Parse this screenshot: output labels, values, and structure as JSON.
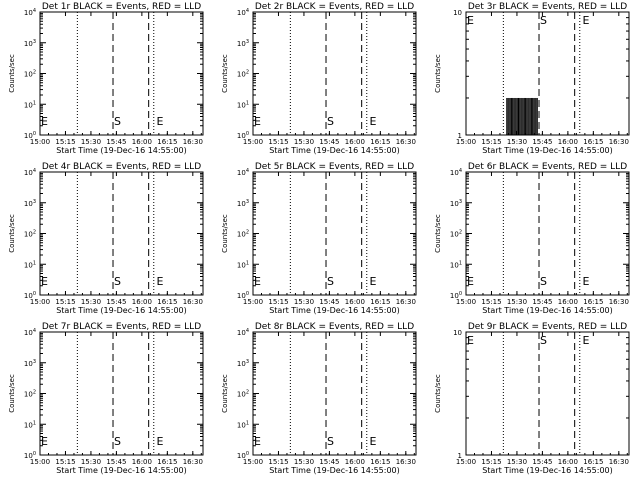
{
  "panel_title_suffix": "BLACK = Events, RED = LLD",
  "x_axis_title": "Start Time (19-Dec-16 14:55:00)",
  "y_axis_title": "Counts/sec",
  "marker_labels": {
    "start": "S",
    "end": "E"
  },
  "colors": {
    "background": "#ffffff",
    "foreground": "#000000",
    "events": "#000000",
    "lld": "#ff0000"
  },
  "chart_data": [
    {
      "type": "line",
      "title": "Det 1r BLACK = Events, RED = LLD",
      "xlabel": "Start Time (19-Dec-16 14:55:00)",
      "ylabel": "Counts/sec",
      "yscale": "log",
      "ylim": [
        1,
        10000
      ],
      "x_tick_labels": [
        "15:00",
        "15:15",
        "15:30",
        "15:45",
        "16:00",
        "16:15",
        "16:30"
      ],
      "y_tick_exponents": [
        0,
        1,
        2,
        3,
        4
      ],
      "dotted_lines": [
        "15:22",
        "16:07",
        "16:36"
      ],
      "dashed_lines": [
        "15:43",
        "16:04"
      ],
      "markers": [
        {
          "label": "E",
          "x": "15:00"
        },
        {
          "label": "S",
          "x": "15:43"
        },
        {
          "label": "E",
          "x": "16:08"
        }
      ],
      "series": [],
      "grid": false
    },
    {
      "type": "line",
      "title": "Det 2r BLACK = Events, RED = LLD",
      "xlabel": "Start Time (19-Dec-16 14:55:00)",
      "ylabel": "Counts/sec",
      "yscale": "log",
      "ylim": [
        1,
        10000
      ],
      "x_tick_labels": [
        "15:00",
        "15:15",
        "15:30",
        "15:45",
        "16:00",
        "16:15",
        "16:30"
      ],
      "y_tick_exponents": [
        0,
        1,
        2,
        3,
        4
      ],
      "dotted_lines": [
        "15:22",
        "16:07",
        "16:36"
      ],
      "dashed_lines": [
        "15:43",
        "16:04"
      ],
      "markers": [
        {
          "label": "E",
          "x": "15:00"
        },
        {
          "label": "S",
          "x": "15:43"
        },
        {
          "label": "E",
          "x": "16:08"
        }
      ],
      "series": [],
      "grid": false
    },
    {
      "type": "line",
      "title": "Det 3r BLACK = Events, RED = LLD",
      "xlabel": "Start Time (19-Dec-16 14:55:00)",
      "ylabel": "Counts/sec",
      "yscale": "log",
      "ylim": [
        1,
        10
      ],
      "y_tick_labels": [
        "1",
        "10"
      ],
      "x_tick_labels": [
        "15:00",
        "15:15",
        "15:30",
        "15:45",
        "16:00",
        "16:15",
        "16:30"
      ],
      "dotted_lines": [
        "15:22",
        "16:07",
        "16:36"
      ],
      "dashed_lines": [
        "15:43",
        "16:04"
      ],
      "markers": [
        {
          "label": "E",
          "x": "15:00"
        },
        {
          "label": "S",
          "x": "15:43"
        },
        {
          "label": "E",
          "x": "16:08"
        }
      ],
      "series": [
        {
          "values_description": "",
          "bursts": {
            "x_start": "15:24",
            "x_end": "15:42",
            "count_per_sec": 2
          }
        }
      ],
      "grid": false
    },
    {
      "type": "line",
      "title": "Det 4r BLACK = Events, RED = LLD",
      "xlabel": "Start Time (19-Dec-16 14:55:00)",
      "ylabel": "Counts/sec",
      "yscale": "log",
      "ylim": [
        1,
        10000
      ],
      "x_tick_labels": [
        "15:00",
        "15:15",
        "15:30",
        "15:45",
        "16:00",
        "16:15",
        "16:30"
      ],
      "y_tick_exponents": [
        0,
        1,
        2,
        3,
        4
      ],
      "dotted_lines": [
        "15:22",
        "16:07",
        "16:36"
      ],
      "dashed_lines": [
        "15:43",
        "16:04"
      ],
      "markers": [
        {
          "label": "E",
          "x": "15:00"
        },
        {
          "label": "S",
          "x": "15:43"
        },
        {
          "label": "E",
          "x": "16:08"
        }
      ],
      "series": [],
      "grid": false
    },
    {
      "type": "line",
      "title": "Det 5r BLACK = Events, RED = LLD",
      "xlabel": "Start Time (19-Dec-16 14:55:00)",
      "ylabel": "Counts/sec",
      "yscale": "log",
      "ylim": [
        1,
        10000
      ],
      "x_tick_labels": [
        "15:00",
        "15:15",
        "15:30",
        "15:45",
        "16:00",
        "16:15",
        "16:30"
      ],
      "y_tick_exponents": [
        0,
        1,
        2,
        3,
        4
      ],
      "dotted_lines": [
        "15:22",
        "16:07",
        "16:36"
      ],
      "dashed_lines": [
        "15:43",
        "16:04"
      ],
      "markers": [
        {
          "label": "E",
          "x": "15:00"
        },
        {
          "label": "S",
          "x": "15:43"
        },
        {
          "label": "E",
          "x": "16:08"
        }
      ],
      "series": [],
      "grid": false
    },
    {
      "type": "line",
      "title": "Det 6r BLACK = Events, RED = LLD",
      "xlabel": "Start Time (19-Dec-16 14:55:00)",
      "ylabel": "Counts/sec",
      "yscale": "log",
      "ylim": [
        1,
        10000
      ],
      "x_tick_labels": [
        "15:00",
        "15:15",
        "15:30",
        "15:45",
        "16:00",
        "16:15",
        "16:30"
      ],
      "y_tick_exponents": [
        0,
        1,
        2,
        3,
        4
      ],
      "dotted_lines": [
        "15:22",
        "16:07",
        "16:36"
      ],
      "dashed_lines": [
        "15:43",
        "16:04"
      ],
      "markers": [
        {
          "label": "E",
          "x": "15:00"
        },
        {
          "label": "S",
          "x": "15:43"
        },
        {
          "label": "E",
          "x": "16:08"
        }
      ],
      "series": [],
      "grid": false
    },
    {
      "type": "line",
      "title": "Det 7r BLACK = Events, RED = LLD",
      "xlabel": "Start Time (19-Dec-16 14:55:00)",
      "ylabel": "Counts/sec",
      "yscale": "log",
      "ylim": [
        1,
        10000
      ],
      "x_tick_labels": [
        "15:00",
        "15:15",
        "15:30",
        "15:45",
        "16:00",
        "16:15",
        "16:30"
      ],
      "y_tick_exponents": [
        0,
        1,
        2,
        3,
        4
      ],
      "dotted_lines": [
        "15:22",
        "16:07",
        "16:36"
      ],
      "dashed_lines": [
        "15:43",
        "16:04"
      ],
      "markers": [
        {
          "label": "E",
          "x": "15:00"
        },
        {
          "label": "S",
          "x": "15:43"
        },
        {
          "label": "E",
          "x": "16:08"
        }
      ],
      "series": [],
      "grid": false
    },
    {
      "type": "line",
      "title": "Det 8r BLACK = Events, RED = LLD",
      "xlabel": "Start Time (19-Dec-16 14:55:00)",
      "ylabel": "Counts/sec",
      "yscale": "log",
      "ylim": [
        1,
        10000
      ],
      "x_tick_labels": [
        "15:00",
        "15:15",
        "15:30",
        "15:45",
        "16:00",
        "16:15",
        "16:30"
      ],
      "y_tick_exponents": [
        0,
        1,
        2,
        3,
        4
      ],
      "dotted_lines": [
        "15:22",
        "16:07",
        "16:36"
      ],
      "dashed_lines": [
        "15:43",
        "16:04"
      ],
      "markers": [
        {
          "label": "E",
          "x": "15:00"
        },
        {
          "label": "S",
          "x": "15:43"
        },
        {
          "label": "E",
          "x": "16:08"
        }
      ],
      "series": [],
      "grid": false
    },
    {
      "type": "line",
      "title": "Det 9r BLACK = Events, RED = LLD",
      "xlabel": "Start Time (19-Dec-16 14:55:00)",
      "ylabel": "Counts/sec",
      "yscale": "log",
      "ylim": [
        1,
        10
      ],
      "y_tick_labels": [
        "1",
        "10"
      ],
      "x_tick_labels": [
        "15:00",
        "15:15",
        "15:30",
        "15:45",
        "16:00",
        "16:15",
        "16:30"
      ],
      "dotted_lines": [
        "15:22",
        "16:07",
        "16:36"
      ],
      "dashed_lines": [
        "15:43",
        "16:04"
      ],
      "markers": [
        {
          "label": "E",
          "x": "15:00"
        },
        {
          "label": "S",
          "x": "15:43"
        },
        {
          "label": "E",
          "x": "16:08"
        }
      ],
      "series": [],
      "grid": false
    }
  ]
}
